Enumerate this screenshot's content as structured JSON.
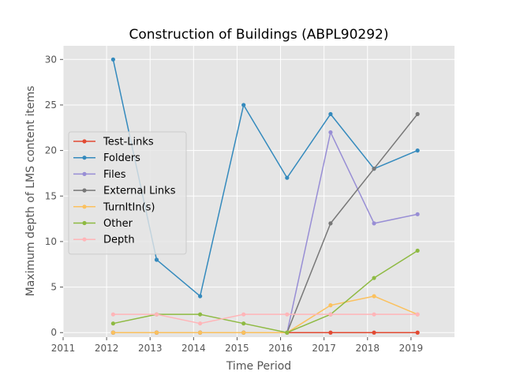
{
  "chart_data": {
    "type": "line",
    "title": "Construction of Buildings (ABPL90292)",
    "xlabel": "Time Period",
    "ylabel": "Maximum depth of LMS content items",
    "xlim": [
      2011,
      2020
    ],
    "ylim": [
      -0.5,
      31.5
    ],
    "xticks": [
      2011,
      2012,
      2013,
      2014,
      2015,
      2016,
      2017,
      2018,
      2019
    ],
    "yticks": [
      0,
      5,
      10,
      15,
      20,
      25,
      30
    ],
    "grid": true,
    "legend_position": "center-left",
    "x": [
      2012.15,
      2013.15,
      2014.15,
      2015.15,
      2016.15,
      2017.15,
      2018.15,
      2019.15
    ],
    "series": [
      {
        "name": "Test-Links",
        "color": "#e24a33",
        "values": [
          0,
          0,
          0,
          0,
          0,
          0,
          0,
          0
        ]
      },
      {
        "name": "Folders",
        "color": "#348abd",
        "values": [
          30,
          8,
          4,
          25,
          17,
          24,
          18,
          20
        ]
      },
      {
        "name": "Files",
        "color": "#988ed5",
        "values": [
          0,
          0,
          0,
          0,
          0,
          22,
          12,
          13
        ]
      },
      {
        "name": "External Links",
        "color": "#777777",
        "values": [
          0,
          0,
          0,
          0,
          0,
          12,
          18,
          24
        ]
      },
      {
        "name": "TurnItIn(s)",
        "color": "#fbc15e",
        "values": [
          0,
          0,
          0,
          0,
          0,
          3,
          4,
          2
        ]
      },
      {
        "name": "Other",
        "color": "#8eba42",
        "values": [
          1,
          2,
          2,
          1,
          0,
          2,
          6,
          9
        ]
      },
      {
        "name": "Depth",
        "color": "#ffb5b8",
        "values": [
          2,
          2,
          1,
          2,
          2,
          2,
          2,
          2
        ]
      }
    ]
  }
}
